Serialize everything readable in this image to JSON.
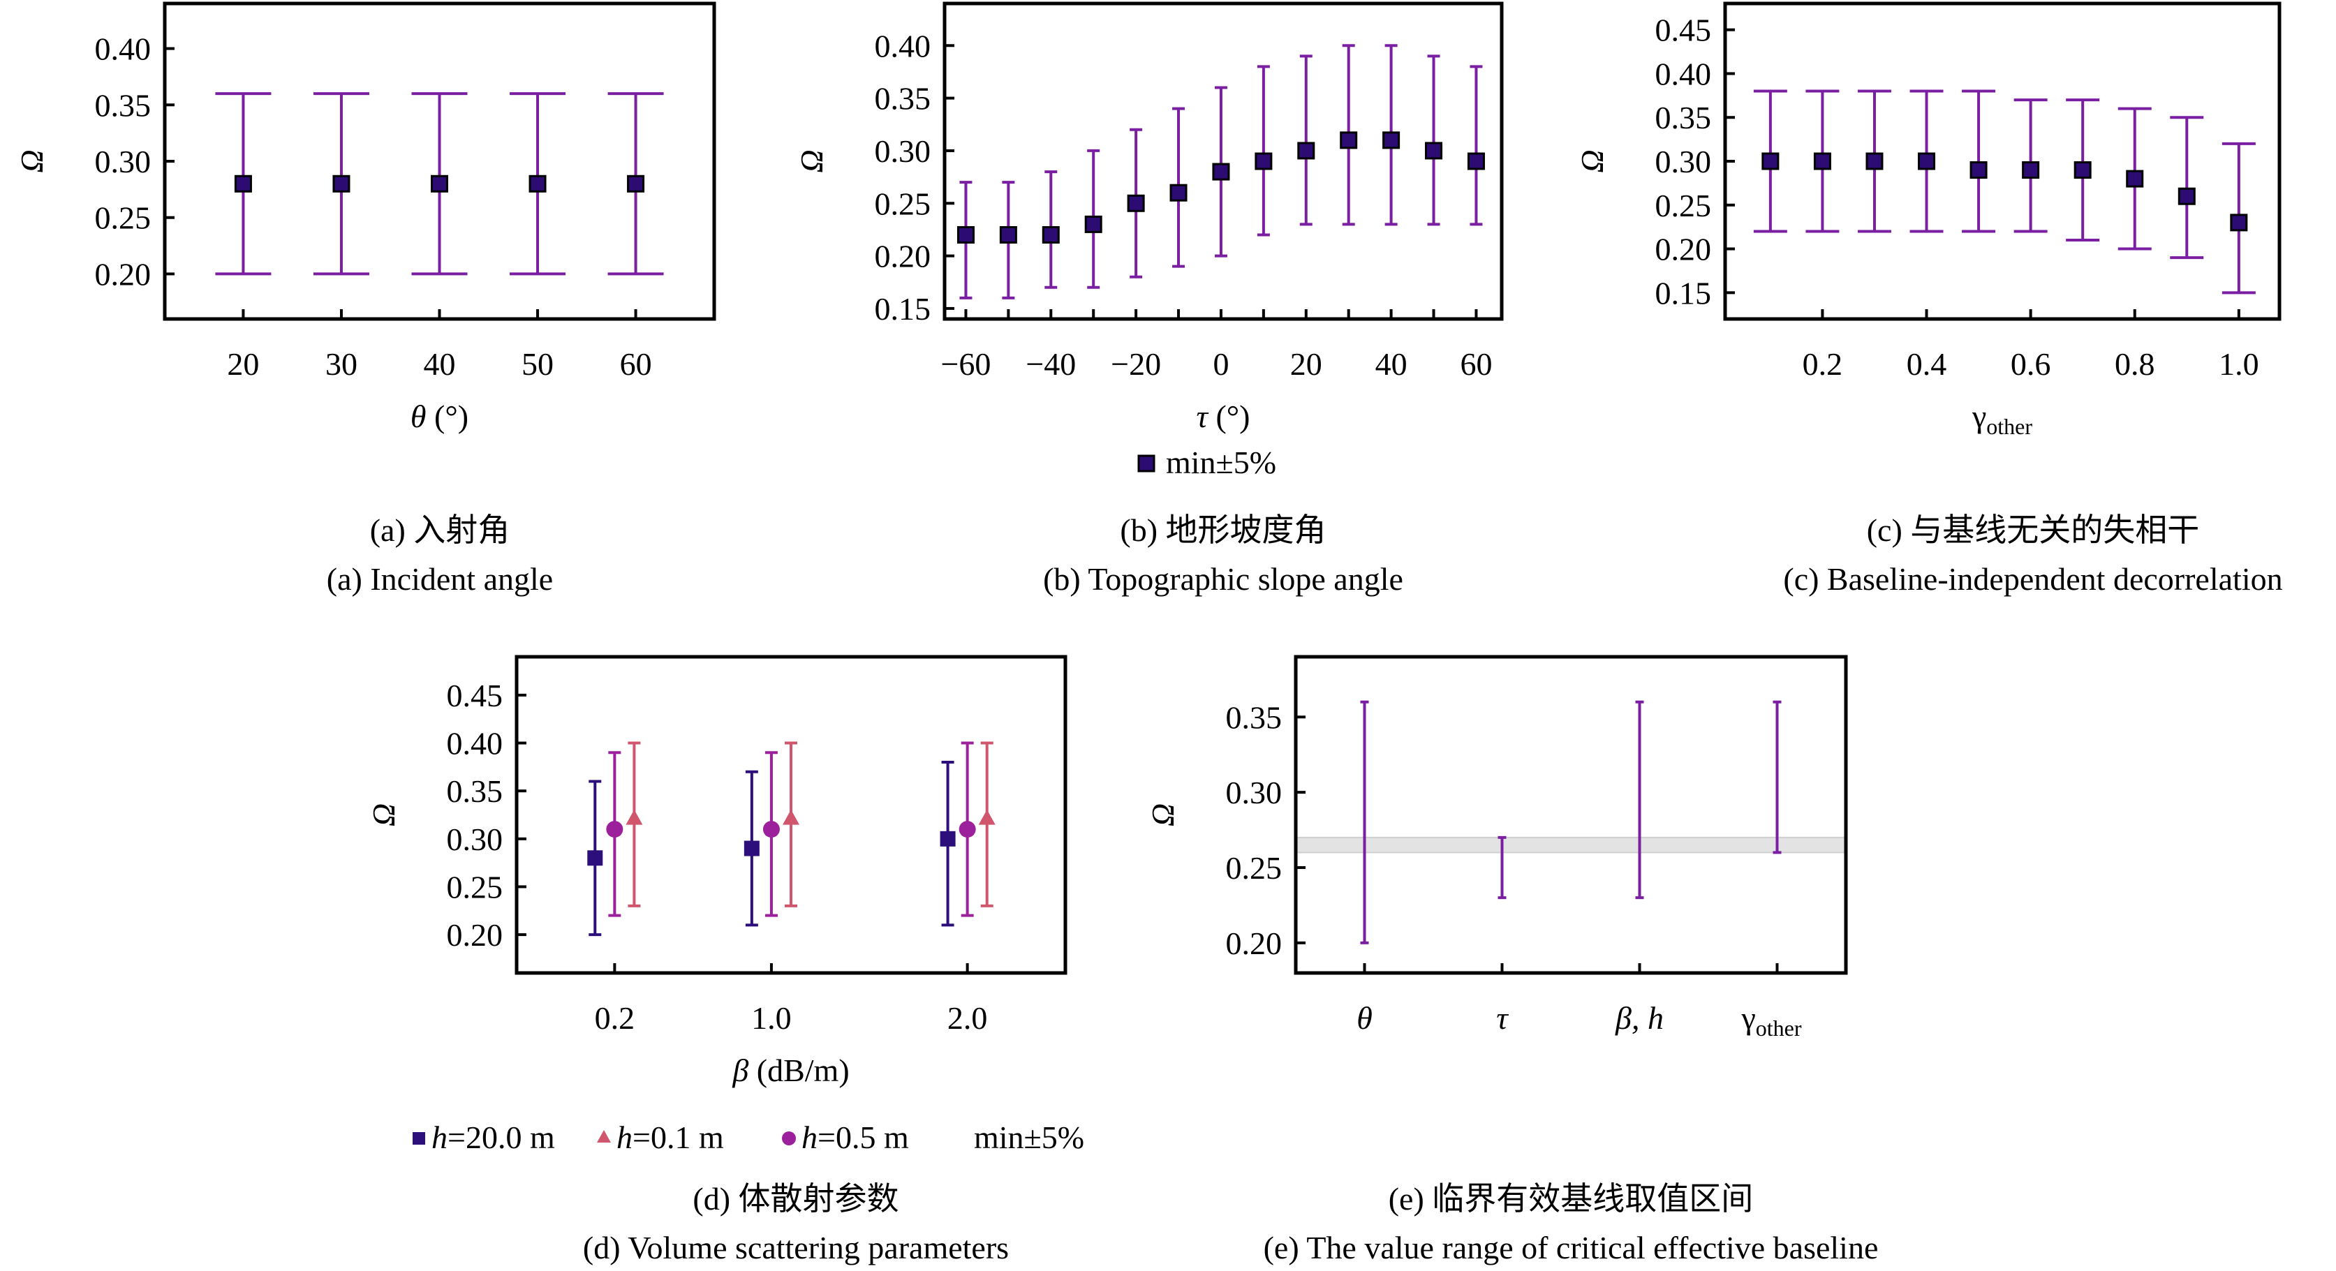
{
  "colors": {
    "marker_fill": "#2c0b72",
    "marker_edge": "#000000",
    "errorbar": "#7b1fa2",
    "h20": "#2c0f7a",
    "h05": "#9c1f9c",
    "h01": "#d0566e",
    "band": "#e3e3e3",
    "band_edge": "#cfcfcf"
  },
  "chart_data": [
    {
      "id": "a",
      "type": "scatter",
      "subtype": "errorbar",
      "title": "",
      "caption_cn": "(a) 入射角",
      "caption_en": "(a) Incident angle",
      "xlabel": "θ (°)",
      "ylabel": "Ω",
      "xlim": [
        12,
        68
      ],
      "ylim": [
        0.16,
        0.44
      ],
      "xticks": [
        20,
        30,
        40,
        50,
        60
      ],
      "xtick_labels": [
        "20",
        "30",
        "40",
        "50",
        "60"
      ],
      "yticks": [
        0.2,
        0.25,
        0.3,
        0.35,
        0.4
      ],
      "ytick_labels": [
        "0.20",
        "0.25",
        "0.30",
        "0.35",
        "0.40"
      ],
      "grid": false,
      "series": [
        {
          "name": "min±5%",
          "marker": "square",
          "x": [
            20,
            30,
            40,
            50,
            60
          ],
          "y": [
            0.28,
            0.28,
            0.28,
            0.28,
            0.28
          ],
          "lower": [
            0.2,
            0.2,
            0.2,
            0.2,
            0.2
          ],
          "upper": [
            0.36,
            0.36,
            0.36,
            0.36,
            0.36
          ]
        }
      ]
    },
    {
      "id": "b",
      "type": "scatter",
      "subtype": "errorbar",
      "title": "",
      "caption_cn": "(b) 地形坡度角",
      "caption_en": "(b) Topographic slope angle",
      "xlabel": "τ (°)",
      "ylabel": "Ω",
      "xlim": [
        -65,
        66
      ],
      "ylim": [
        0.14,
        0.44
      ],
      "xticks": [
        -60,
        -40,
        -20,
        0,
        20,
        40,
        60
      ],
      "xtick_labels": [
        "−60",
        "−40",
        "−20",
        "0",
        "20",
        "40",
        "60"
      ],
      "minor_xticks": [
        -50,
        -30,
        -10,
        10,
        30,
        50
      ],
      "yticks": [
        0.15,
        0.2,
        0.25,
        0.3,
        0.35,
        0.4
      ],
      "ytick_labels": [
        "0.15",
        "0.20",
        "0.25",
        "0.30",
        "0.35",
        "0.40"
      ],
      "grid": false,
      "legend": {
        "position": "bottom-center",
        "entries": [
          "min±5%"
        ]
      },
      "series": [
        {
          "name": "min±5%",
          "marker": "square",
          "x": [
            -60,
            -50,
            -40,
            -30,
            -20,
            -10,
            0,
            10,
            20,
            30,
            40,
            50,
            60
          ],
          "y": [
            0.22,
            0.22,
            0.22,
            0.23,
            0.25,
            0.26,
            0.28,
            0.29,
            0.3,
            0.31,
            0.31,
            0.3,
            0.29
          ],
          "lower": [
            0.16,
            0.16,
            0.17,
            0.17,
            0.18,
            0.19,
            0.2,
            0.22,
            0.23,
            0.23,
            0.23,
            0.23,
            0.23
          ],
          "upper": [
            0.27,
            0.27,
            0.28,
            0.3,
            0.32,
            0.34,
            0.36,
            0.38,
            0.39,
            0.4,
            0.4,
            0.39,
            0.38
          ]
        }
      ]
    },
    {
      "id": "c",
      "type": "scatter",
      "subtype": "errorbar",
      "title": "",
      "caption_cn": "(c) 与基线无关的失相干",
      "caption_en": "(c) Baseline-independent decorrelation",
      "xlabel": "γ",
      "xlabel_sub": "other",
      "ylabel": "Ω",
      "xlim": [
        0.013,
        1.078
      ],
      "ylim": [
        0.12,
        0.48
      ],
      "xticks": [
        0.2,
        0.4,
        0.6,
        0.8,
        1.0
      ],
      "xtick_labels": [
        "0.2",
        "0.4",
        "0.6",
        "0.8",
        "1.0"
      ],
      "yticks": [
        0.15,
        0.2,
        0.25,
        0.3,
        0.35,
        0.4,
        0.45
      ],
      "ytick_labels": [
        "0.15",
        "0.20",
        "0.25",
        "0.30",
        "0.35",
        "0.40",
        "0.45"
      ],
      "grid": false,
      "series": [
        {
          "name": "min±5%",
          "marker": "square",
          "x": [
            0.1,
            0.2,
            0.3,
            0.4,
            0.5,
            0.6,
            0.7,
            0.8,
            0.9,
            1.0
          ],
          "y": [
            0.3,
            0.3,
            0.3,
            0.3,
            0.29,
            0.29,
            0.29,
            0.28,
            0.26,
            0.23
          ],
          "lower": [
            0.22,
            0.22,
            0.22,
            0.22,
            0.22,
            0.22,
            0.21,
            0.2,
            0.19,
            0.15
          ],
          "upper": [
            0.38,
            0.38,
            0.38,
            0.38,
            0.38,
            0.37,
            0.37,
            0.36,
            0.35,
            0.32
          ]
        }
      ]
    },
    {
      "id": "d",
      "type": "scatter",
      "subtype": "errorbar",
      "title": "",
      "caption_cn": "(d) 体散射参数",
      "caption_en": "(d) Volume scattering parameters",
      "xlabel": "β (dB/m)",
      "ylabel": "Ω",
      "xlim": [
        -0.3,
        2.5
      ],
      "ylim": [
        0.16,
        0.49
      ],
      "xticks": [
        0.2,
        1.0,
        2.0
      ],
      "xtick_labels": [
        "0.2",
        "1.0",
        "2.0"
      ],
      "yticks": [
        0.2,
        0.25,
        0.3,
        0.35,
        0.4,
        0.45
      ],
      "ytick_labels": [
        "0.20",
        "0.25",
        "0.30",
        "0.35",
        "0.40",
        "0.45"
      ],
      "grid": false,
      "legend": {
        "position": "bottom-center",
        "suffix": "min±5%"
      },
      "series": [
        {
          "name": "h=20.0 m",
          "legend_var": "h",
          "legend_rest": "=20.0 m",
          "marker": "square",
          "color_key": "h20",
          "x": [
            0.1,
            0.9,
            1.9
          ],
          "y": [
            0.28,
            0.29,
            0.3
          ],
          "lower": [
            0.2,
            0.21,
            0.21
          ],
          "upper": [
            0.36,
            0.37,
            0.38
          ]
        },
        {
          "name": "h=0.1 m",
          "legend_var": "h",
          "legend_rest": "=0.1 m",
          "marker": "triangle",
          "color_key": "h01",
          "x": [
            0.3,
            1.1,
            2.1
          ],
          "y": [
            0.32,
            0.32,
            0.32
          ],
          "lower": [
            0.23,
            0.23,
            0.23
          ],
          "upper": [
            0.4,
            0.4,
            0.4
          ]
        },
        {
          "name": "h=0.5 m",
          "legend_var": "h",
          "legend_rest": "=0.5 m",
          "marker": "circle",
          "color_key": "h05",
          "x": [
            0.2,
            1.0,
            2.0
          ],
          "y": [
            0.31,
            0.31,
            0.31
          ],
          "lower": [
            0.22,
            0.22,
            0.22
          ],
          "upper": [
            0.39,
            0.39,
            0.4
          ]
        }
      ]
    },
    {
      "id": "e",
      "type": "scatter",
      "subtype": "range",
      "title": "",
      "caption_cn": "(e) 临界有效基线取值区间",
      "caption_en": "(e) The value range of critical effective baseline",
      "xlabel": "",
      "ylabel": "Ω",
      "xlim": [
        -0.5,
        3.5
      ],
      "ylim": [
        0.18,
        0.39
      ],
      "categories": [
        "θ",
        "τ",
        "β, h",
        "γ_other"
      ],
      "xtick_labels": [
        "θ",
        "τ",
        "β, h",
        "γ"
      ],
      "xtick_subs": [
        "",
        "",
        "",
        "other"
      ],
      "yticks": [
        0.2,
        0.25,
        0.3,
        0.35
      ],
      "ytick_labels": [
        "0.20",
        "0.25",
        "0.30",
        "0.35"
      ],
      "grid": false,
      "ranges": [
        {
          "category": "θ",
          "lower": 0.2,
          "upper": 0.36
        },
        {
          "category": "τ",
          "lower": 0.23,
          "upper": 0.27
        },
        {
          "category": "β, h",
          "lower": 0.23,
          "upper": 0.36
        },
        {
          "category": "γ_other",
          "lower": 0.26,
          "upper": 0.36
        }
      ],
      "band": {
        "lower": 0.26,
        "upper": 0.27
      }
    }
  ]
}
